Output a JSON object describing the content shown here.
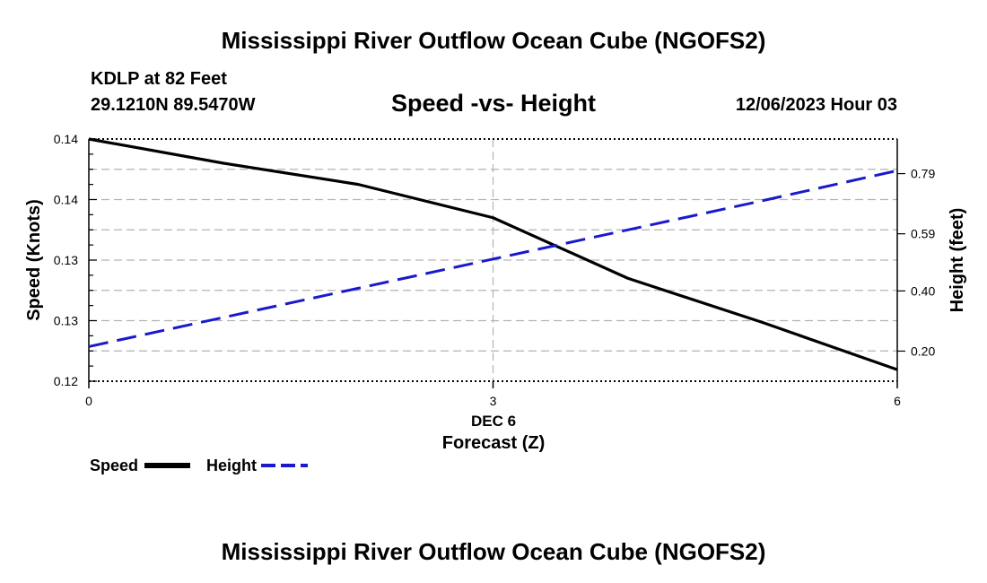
{
  "page": {
    "title_top": "Mississippi River Outflow Ocean Cube (NGOFS2)",
    "title_bottom": "Mississippi River Outflow Ocean Cube (NGOFS2)",
    "station": "KDLP at 82 Feet",
    "coords": "29.1210N  89.5470W",
    "timestamp": "12/06/2023 Hour 03"
  },
  "legend": {
    "speed_label": "Speed",
    "height_label": "Height"
  },
  "colors": {
    "speed": "#000000",
    "height": "#1a1acc",
    "grid": "#b3b3b3"
  },
  "chart_data": {
    "type": "line",
    "title": "Speed -vs- Height",
    "xlabel": "Forecast (Z)",
    "xlabel_date": "DEC 6",
    "ylabel": "Speed (Knots)",
    "y2label": "Height (feet)",
    "x": [
      0,
      1,
      2,
      3,
      4,
      5,
      6
    ],
    "xlim": [
      0,
      6
    ],
    "xticks": [
      0,
      3,
      6
    ],
    "xtick_labels": [
      "0",
      "3",
      "6"
    ],
    "ylim": [
      0,
      4
    ],
    "yticks": [
      0,
      1,
      2,
      3,
      4
    ],
    "ytick_labels": [
      "0.12",
      "0.13",
      "0.13",
      "0.14",
      "0.14"
    ],
    "y2lim": [
      0.1,
      0.905
    ],
    "y2ticks": [
      0.2,
      0.4,
      0.59,
      0.79
    ],
    "y2tick_labels": [
      "0.20",
      "0.40",
      "0.59",
      "0.79"
    ],
    "grid": true,
    "series": [
      {
        "name": "Speed",
        "axis": "left",
        "style": "solid",
        "values": [
          4.0,
          3.6,
          3.25,
          2.7,
          1.7,
          0.97,
          0.19
        ]
      },
      {
        "name": "Height",
        "axis": "right",
        "style": "dashed",
        "values": [
          0.215,
          0.312,
          0.409,
          0.506,
          0.603,
          0.7,
          0.8
        ]
      }
    ]
  }
}
